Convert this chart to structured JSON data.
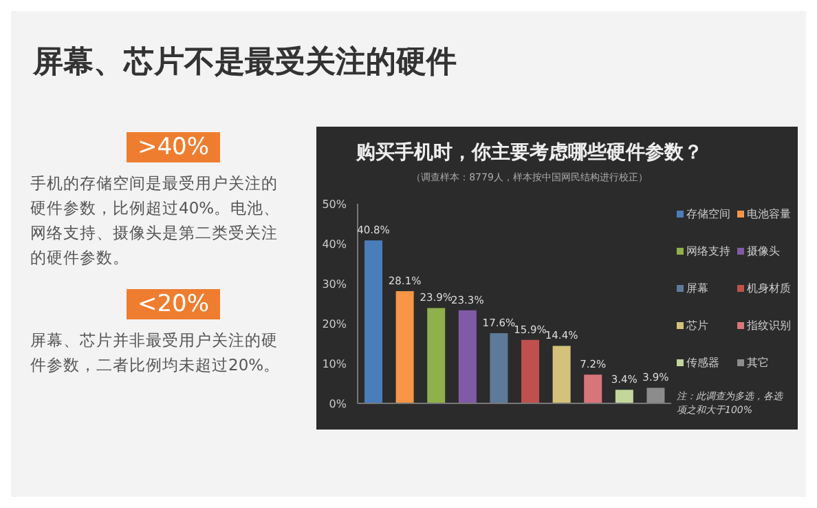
{
  "chart_data": {
    "type": "bar",
    "title": "购买手机时，你主要考虑哪些硬件参数？",
    "subtitle": "（调查样本：8779人，样本按中国网民结构进行校正）",
    "categories": [
      null,
      null,
      null,
      null,
      null,
      null,
      null,
      null,
      null,
      null
    ],
    "series": [
      {
        "name": "存储空间",
        "color": "#4a7ebb",
        "values": [
          40.8,
          null,
          null,
          null,
          null,
          null,
          null,
          null,
          null,
          null
        ],
        "value_labels": [
          "40.8%",
          null,
          null,
          null,
          null,
          null,
          null,
          null,
          null,
          null
        ]
      },
      {
        "name": "电池容量",
        "color": "#f79646",
        "values": [
          null,
          28.1,
          null,
          null,
          null,
          null,
          null,
          null,
          null,
          null
        ],
        "value_labels": [
          null,
          "28.1%",
          null,
          null,
          null,
          null,
          null,
          null,
          null,
          null
        ]
      },
      {
        "name": "网络支持",
        "color": "#8fb04a",
        "values": [
          null,
          null,
          23.9,
          null,
          null,
          null,
          null,
          null,
          null,
          null
        ],
        "value_labels": [
          null,
          null,
          "23.9%",
          null,
          null,
          null,
          null,
          null,
          null,
          null
        ]
      },
      {
        "name": "摄像头",
        "color": "#7f5ba6",
        "values": [
          null,
          null,
          null,
          23.3,
          null,
          null,
          null,
          null,
          null,
          null
        ],
        "value_labels": [
          null,
          null,
          null,
          "23.3%",
          null,
          null,
          null,
          null,
          null,
          null
        ]
      },
      {
        "name": "屏幕",
        "color": "#5d7a9a",
        "values": [
          null,
          null,
          null,
          null,
          17.6,
          null,
          null,
          null,
          null,
          null
        ],
        "value_labels": [
          null,
          null,
          null,
          null,
          "17.6%",
          null,
          null,
          null,
          null,
          null
        ]
      },
      {
        "name": "机身材质",
        "color": "#c0504d",
        "values": [
          null,
          null,
          null,
          null,
          null,
          15.9,
          null,
          null,
          null,
          null
        ],
        "value_labels": [
          null,
          null,
          null,
          null,
          null,
          "15.9%",
          null,
          null,
          null,
          null
        ]
      },
      {
        "name": "芯片",
        "color": "#d4c27a",
        "values": [
          null,
          null,
          null,
          null,
          null,
          null,
          14.4,
          null,
          null,
          null
        ],
        "value_labels": [
          null,
          null,
          null,
          null,
          null,
          null,
          "14.4%",
          null,
          null,
          null
        ]
      },
      {
        "name": "指纹识别",
        "color": "#d9757a",
        "values": [
          null,
          null,
          null,
          null,
          null,
          null,
          null,
          7.2,
          null,
          null
        ],
        "value_labels": [
          null,
          null,
          null,
          null,
          null,
          null,
          null,
          "7.2%",
          null,
          null
        ]
      },
      {
        "name": "传感器",
        "color": "#c3d69b",
        "values": [
          null,
          null,
          null,
          null,
          null,
          null,
          null,
          null,
          3.4,
          null
        ],
        "value_labels": [
          null,
          null,
          null,
          null,
          null,
          null,
          null,
          null,
          "3.4%",
          null
        ]
      },
      {
        "name": "其它",
        "color": "#8c8c8c",
        "values": [
          null,
          null,
          null,
          null,
          null,
          null,
          null,
          null,
          null,
          3.9
        ],
        "value_labels": [
          null,
          null,
          null,
          null,
          null,
          null,
          null,
          null,
          null,
          "3.9%"
        ]
      }
    ],
    "ylim": [
      0,
      50
    ],
    "yticks": [
      {
        "value": 0,
        "label": "0%"
      },
      {
        "value": 10,
        "label": "10%"
      },
      {
        "value": 20,
        "label": "20%"
      },
      {
        "value": 30,
        "label": "30%"
      },
      {
        "value": 40,
        "label": "40%"
      },
      {
        "value": 50,
        "label": "50%"
      }
    ],
    "grid": false,
    "legend": "right",
    "annotations": [
      "屏幕、芯片不是最受关注的硬件",
      ">40%",
      "手机的存储空间是最受用户关注的硬件参数，比例超过40%。电池、网络支持、摄像头是第二类受关注的硬件参数。",
      "<20%",
      "屏幕、芯片并非最受用户关注的硬件参数，二者比例均未超过20%。",
      "注：此调查为多选，各选项之和大于100%"
    ]
  }
}
